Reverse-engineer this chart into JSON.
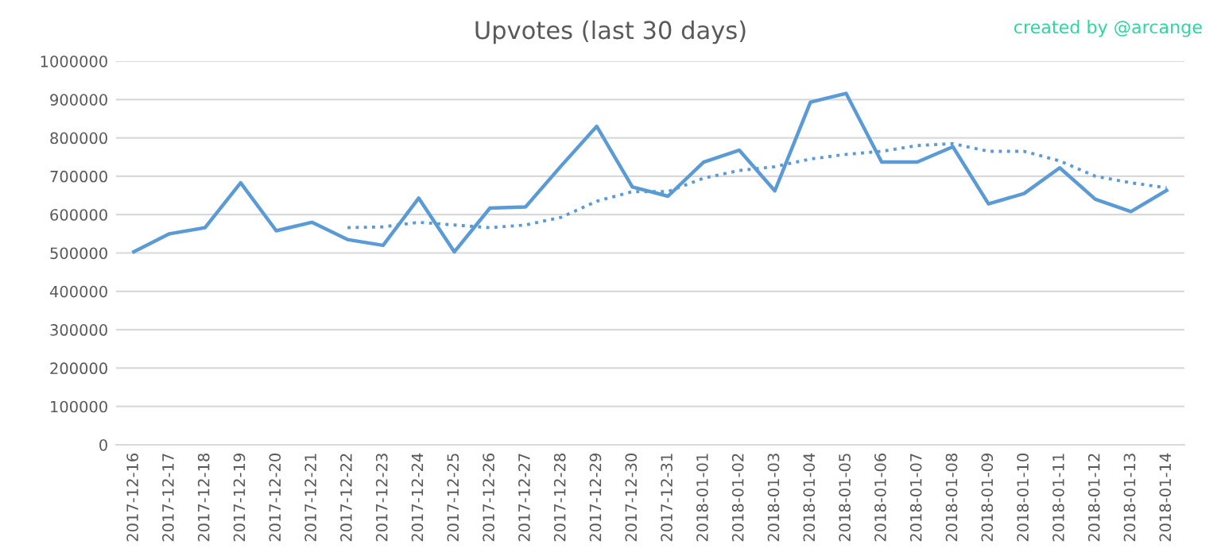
{
  "chart_data": {
    "type": "line",
    "title": "Upvotes (last 30 days)",
    "annotations": [
      "created by @arcange"
    ],
    "categories": [
      "2017-12-16",
      "2017-12-17",
      "2017-12-18",
      "2017-12-19",
      "2017-12-20",
      "2017-12-21",
      "2017-12-22",
      "2017-12-23",
      "2017-12-24",
      "2017-12-25",
      "2017-12-26",
      "2017-12-27",
      "2017-12-28",
      "2017-12-29",
      "2017-12-30",
      "2017-12-31",
      "2018-01-01",
      "2018-01-02",
      "2018-01-03",
      "2018-01-04",
      "2018-01-05",
      "2018-01-06",
      "2018-01-07",
      "2018-01-08",
      "2018-01-09",
      "2018-01-10",
      "2018-01-11",
      "2018-01-12",
      "2018-01-13",
      "2018-01-14"
    ],
    "series": [
      {
        "color": "#5b9bd5",
        "line_style": "solid",
        "values": [
          503000,
          550000,
          566000,
          683000,
          558000,
          580000,
          535000,
          520000,
          643000,
          503000,
          617000,
          620000,
          727000,
          830000,
          672000,
          648000,
          737000,
          768000,
          662000,
          893000,
          916000,
          737000,
          737000,
          777000,
          628000,
          655000,
          722000,
          640000,
          608000,
          663000
        ]
      },
      {
        "color": "#5b9bd5",
        "line_style": "dotted",
        "values": [
          null,
          null,
          null,
          null,
          null,
          null,
          566000,
          568000,
          580000,
          573000,
          566000,
          573000,
          593000,
          635000,
          660000,
          660000,
          695000,
          715000,
          725000,
          745000,
          757000,
          765000,
          780000,
          785000,
          765000,
          765000,
          740000,
          700000,
          683000,
          670000
        ]
      }
    ],
    "ylim": [
      0,
      1000000
    ],
    "yticks": [
      0,
      100000,
      200000,
      300000,
      400000,
      500000,
      600000,
      700000,
      800000,
      900000,
      1000000
    ],
    "grid": "y",
    "legend": false,
    "marker": "none"
  }
}
